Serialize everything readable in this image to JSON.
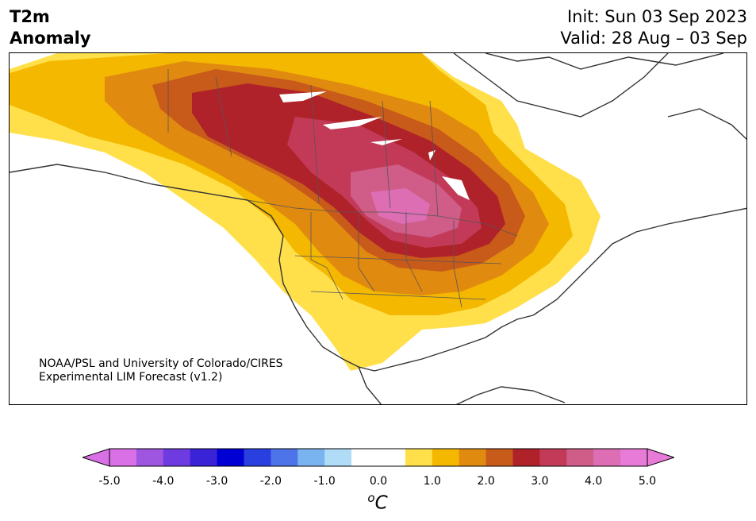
{
  "title": {
    "line1": "T2m",
    "line2": "Anomaly"
  },
  "dates": {
    "init": "Init: Sun 03 Sep 2023",
    "valid": "Valid: 28 Aug – 03 Sep"
  },
  "credit": {
    "line1": "NOAA/PSL and University of Colorado/CIRES",
    "line2": "Experimental LIM Forecast (v1.2)"
  },
  "colorbar": {
    "ticks": [
      "-5.0",
      "-4.0",
      "-3.0",
      "-2.0",
      "-1.0",
      "0.0",
      "1.0",
      "2.0",
      "3.0",
      "4.0",
      "5.0"
    ],
    "units_base": "C",
    "units_sup": "o",
    "colors": [
      "#da70e6",
      "#9e55e0",
      "#6d3be0",
      "#3a22d6",
      "#0000d4",
      "#2a3fe0",
      "#4d74e8",
      "#7ab4f0",
      "#b0dcf8",
      "#ffffff",
      "#ffffff",
      "#ffe04a",
      "#f4b800",
      "#e08a10",
      "#c85a1a",
      "#b0222a",
      "#c23a58",
      "#d05c88",
      "#dd6eb4",
      "#e87ad8"
    ],
    "under_color": "#da70e6",
    "over_color": "#e87ad8"
  }
}
